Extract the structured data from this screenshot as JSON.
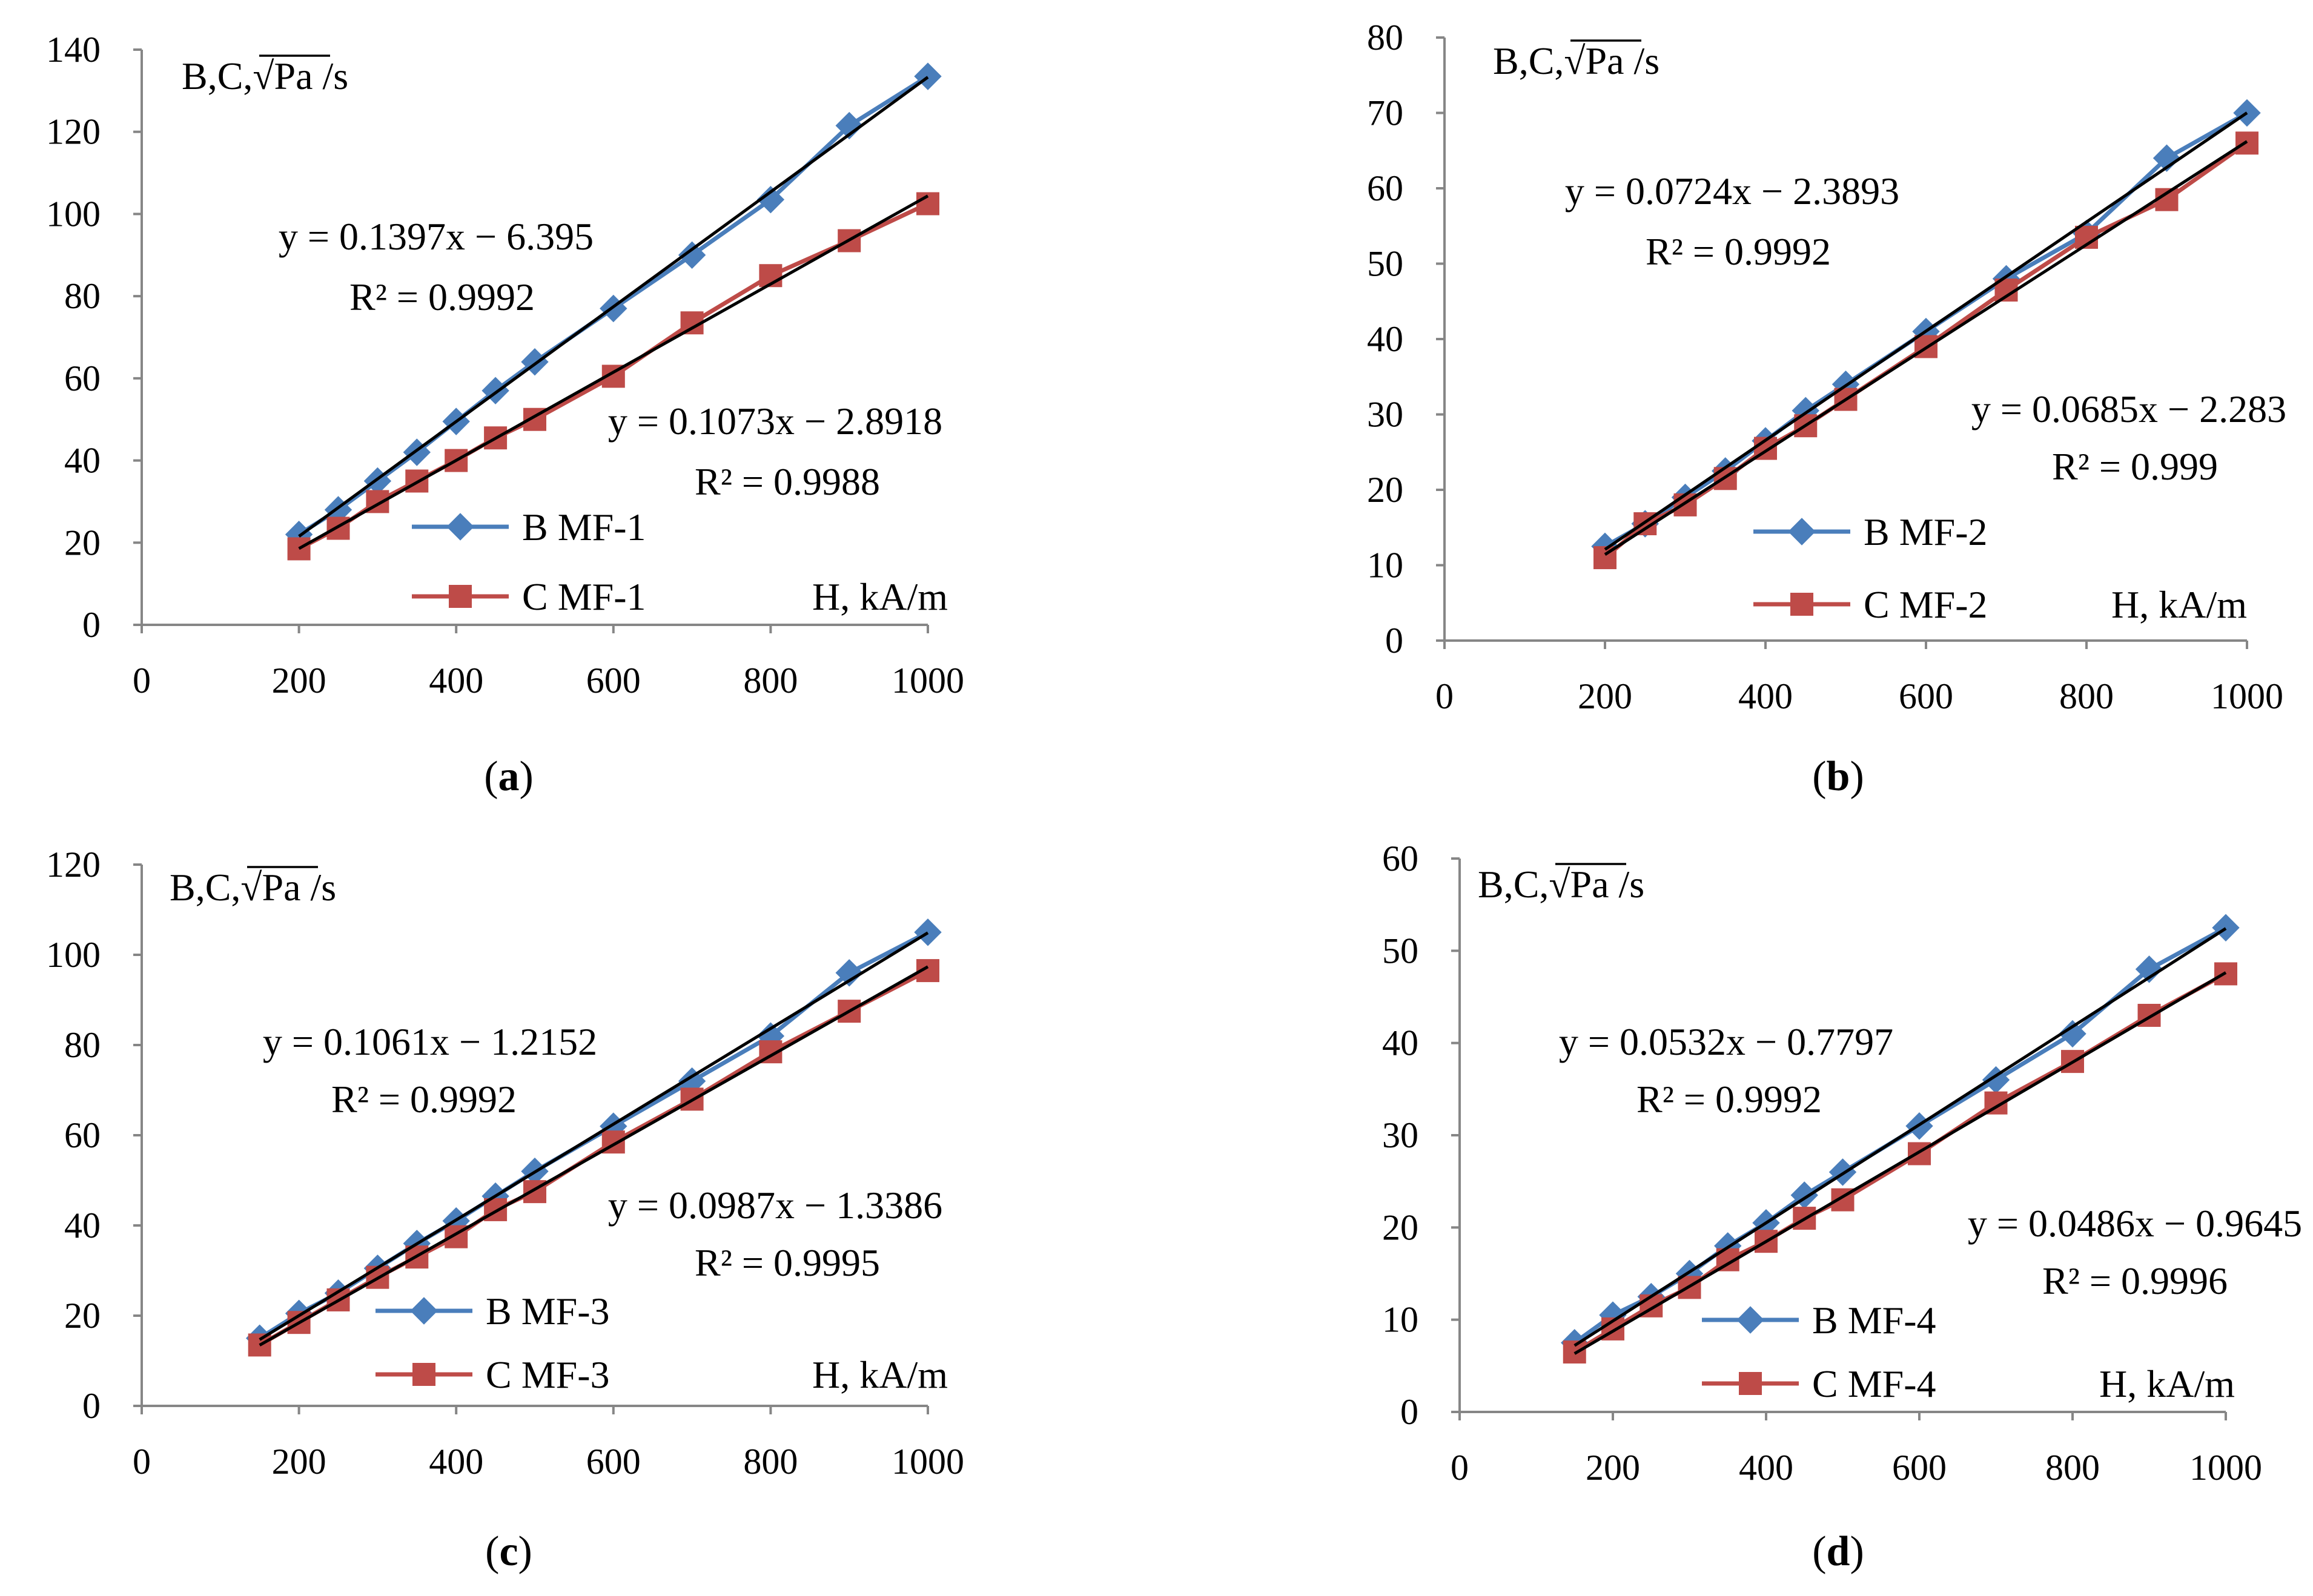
{
  "figure": {
    "panels": [
      "a",
      "b",
      "c",
      "d"
    ]
  },
  "chart_data": [
    {
      "type": "line",
      "panel": "a",
      "caption_letter": "a",
      "y_label_prefix": "B,C,",
      "y_label_sqrt": "Pa",
      "y_label_suffix": "/s",
      "x_label": "H, kA/m",
      "xlim": [
        0,
        1000
      ],
      "ylim": [
        0,
        140
      ],
      "xticks": [
        0,
        200,
        400,
        600,
        800,
        1000
      ],
      "yticks": [
        0,
        20,
        40,
        60,
        80,
        100,
        120,
        140
      ],
      "grid": false,
      "colors": {
        "B": "#4a7ebb",
        "C": "#be4b48",
        "trend": "#000000"
      },
      "series": [
        {
          "name": "B MF-1",
          "marker": "diamond",
          "x": [
            200,
            250,
            300,
            350,
            400,
            450,
            500,
            600,
            700,
            800,
            900,
            1000
          ],
          "y": [
            22,
            28,
            35,
            42,
            49.5,
            57,
            64,
            77,
            90,
            103.5,
            121.5,
            133.5
          ],
          "trend": {
            "slope": 0.1397,
            "intercept": -6.395,
            "equation": "y = 0.1397x − 6.395",
            "r2": "R² = 0.9992"
          }
        },
        {
          "name": "C MF-1",
          "marker": "square",
          "x": [
            200,
            250,
            300,
            350,
            400,
            450,
            500,
            600,
            700,
            800,
            900,
            1000
          ],
          "y": [
            18.5,
            23.5,
            30,
            35,
            40,
            45.5,
            50,
            60.5,
            73.5,
            85,
            93.5,
            102.5
          ],
          "trend": {
            "slope": 0.1073,
            "intercept": -2.8918,
            "equation": "y = 0.1073x − 2.8918",
            "r2": "R² = 0.9988"
          }
        }
      ]
    },
    {
      "type": "line",
      "panel": "b",
      "caption_letter": "b",
      "y_label_prefix": "B,C,",
      "y_label_sqrt": "Pa",
      "y_label_suffix": "/s",
      "x_label": "H, kA/m",
      "xlim": [
        0,
        1000
      ],
      "ylim": [
        0,
        80
      ],
      "xticks": [
        0,
        200,
        400,
        600,
        800,
        1000
      ],
      "yticks": [
        0,
        10,
        20,
        30,
        40,
        50,
        60,
        70,
        80
      ],
      "grid": false,
      "colors": {
        "B": "#4a7ebb",
        "C": "#be4b48",
        "trend": "#000000"
      },
      "series": [
        {
          "name": "B MF-2",
          "marker": "diamond",
          "x": [
            200,
            250,
            300,
            350,
            400,
            450,
            500,
            600,
            700,
            800,
            900,
            1000
          ],
          "y": [
            12.5,
            15.5,
            19,
            22.5,
            26.5,
            30.5,
            34,
            41,
            48,
            54,
            64,
            70
          ],
          "trend": {
            "slope": 0.0724,
            "intercept": -2.3893,
            "equation": "y = 0.0724x − 2.3893",
            "r2": "R² = 0.9992"
          }
        },
        {
          "name": "C MF-2",
          "marker": "square",
          "x": [
            200,
            250,
            300,
            350,
            400,
            450,
            500,
            600,
            700,
            800,
            900,
            1000
          ],
          "y": [
            11,
            15.5,
            18,
            21.5,
            25.5,
            28.5,
            32,
            39,
            46.5,
            53.5,
            58.5,
            66
          ],
          "trend": {
            "slope": 0.0685,
            "intercept": -2.283,
            "equation": "y = 0.0685x − 2.283",
            "r2": "R² = 0.999"
          }
        }
      ]
    },
    {
      "type": "line",
      "panel": "c",
      "caption_letter": "c",
      "y_label_prefix": "B,C,",
      "y_label_sqrt": "Pa",
      "y_label_suffix": "/s",
      "x_label": "H, kA/m",
      "xlim": [
        0,
        1000
      ],
      "ylim": [
        0,
        120
      ],
      "xticks": [
        0,
        200,
        400,
        600,
        800,
        1000
      ],
      "yticks": [
        0,
        20,
        40,
        60,
        80,
        100,
        120
      ],
      "grid": false,
      "colors": {
        "B": "#4a7ebb",
        "C": "#be4b48",
        "trend": "#000000"
      },
      "series": [
        {
          "name": "B MF-3",
          "marker": "diamond",
          "x": [
            150,
            200,
            250,
            300,
            350,
            400,
            450,
            500,
            600,
            700,
            800,
            900,
            1000
          ],
          "y": [
            15,
            20.5,
            25,
            30.5,
            36,
            41,
            46.5,
            52,
            62,
            72,
            82,
            96,
            105
          ],
          "trend": {
            "slope": 0.1061,
            "intercept": -1.2152,
            "equation": "y = 0.1061x − 1.2152",
            "r2": "R² = 0.9992"
          }
        },
        {
          "name": "C MF-3",
          "marker": "square",
          "x": [
            150,
            200,
            250,
            300,
            350,
            400,
            450,
            500,
            600,
            700,
            800,
            900,
            1000
          ],
          "y": [
            13.5,
            18.5,
            23.5,
            28.5,
            33,
            37.5,
            43.5,
            47.5,
            58.5,
            68,
            78.5,
            87.5,
            96.5
          ],
          "trend": {
            "slope": 0.0987,
            "intercept": -1.3386,
            "equation": "y = 0.0987x − 1.3386",
            "r2": "R² = 0.9995"
          }
        }
      ]
    },
    {
      "type": "line",
      "panel": "d",
      "caption_letter": "d",
      "y_label_prefix": "B,C,",
      "y_label_sqrt": "Pa",
      "y_label_suffix": "/s",
      "x_label": "H, kA/m",
      "xlim": [
        0,
        1000
      ],
      "ylim": [
        0,
        60
      ],
      "xticks": [
        0,
        200,
        400,
        600,
        800,
        1000
      ],
      "yticks": [
        0,
        10,
        20,
        30,
        40,
        50,
        60
      ],
      "grid": false,
      "colors": {
        "B": "#4a7ebb",
        "C": "#be4b48",
        "trend": "#000000"
      },
      "series": [
        {
          "name": "B  MF-4",
          "marker": "diamond",
          "x": [
            150,
            200,
            250,
            300,
            350,
            400,
            450,
            500,
            600,
            700,
            800,
            900,
            1000
          ],
          "y": [
            7.5,
            10.5,
            12.5,
            15,
            18,
            20.5,
            23.5,
            26,
            31,
            36,
            41,
            48,
            52.5
          ],
          "trend": {
            "slope": 0.0532,
            "intercept": -0.7797,
            "equation": "y = 0.0532x − 0.7797",
            "r2": "R² = 0.9992"
          }
        },
        {
          "name": "C  MF-4",
          "marker": "square",
          "x": [
            150,
            200,
            250,
            300,
            350,
            400,
            450,
            500,
            600,
            700,
            800,
            900,
            1000
          ],
          "y": [
            6.5,
            9,
            11.5,
            13.5,
            16.5,
            18.5,
            21,
            23,
            28,
            33.5,
            38,
            43,
            47.5
          ],
          "trend": {
            "slope": 0.0486,
            "intercept": -0.9645,
            "equation": "y = 0.0486x − 0.9645",
            "r2": "R² = 0.9996"
          }
        }
      ]
    }
  ]
}
